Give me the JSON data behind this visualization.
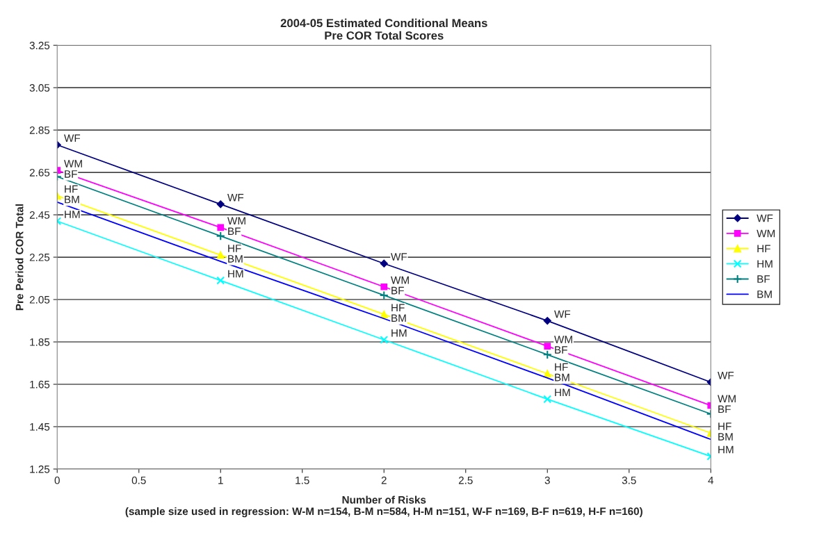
{
  "chart_data": {
    "type": "line",
    "title": "2004-05 Estimated Conditional Means\nPre COR Total Scores",
    "xlabel": "Number of Risks\n(sample size used in regression: W-M n=154, B-M n=584, H-M n=151, W-F n=169, B-F n=619, H-F n=160)",
    "ylabel": "Pre Period COR Total",
    "x": [
      0,
      1,
      2,
      3,
      4
    ],
    "series": [
      {
        "name": "WF",
        "color": "#000080",
        "marker": "diamond",
        "values": [
          2.78,
          2.5,
          2.22,
          1.95,
          1.66
        ],
        "value_labels": [
          "WF",
          "WF",
          "WF",
          "WF",
          "WF"
        ]
      },
      {
        "name": "WM",
        "color": "#ff00ff",
        "marker": "square",
        "values": [
          2.66,
          2.39,
          2.11,
          1.83,
          1.55
        ],
        "value_labels": [
          "WM",
          "WM",
          "WM",
          "WM",
          "WM"
        ]
      },
      {
        "name": "HF",
        "color": "#ffff00",
        "marker": "triangle",
        "values": [
          2.54,
          2.26,
          1.98,
          1.7,
          1.42
        ],
        "value_labels": [
          "HF",
          "HF",
          "HF",
          "HF",
          "HF"
        ]
      },
      {
        "name": "HM",
        "color": "#00ffff",
        "marker": "cross",
        "values": [
          2.42,
          2.14,
          1.86,
          1.58,
          1.31
        ],
        "value_labels": [
          "HM",
          "HM",
          "HM",
          "HM",
          "HM"
        ]
      },
      {
        "name": "BF",
        "color": "#008080",
        "marker": "plus",
        "values": [
          2.63,
          2.35,
          2.07,
          1.79,
          1.51
        ],
        "value_labels": [
          "BF",
          "BF",
          "BF",
          "BF",
          "BF"
        ]
      },
      {
        "name": "BM",
        "color": "#0000ff",
        "marker": "none",
        "values": [
          2.51,
          2.23,
          1.96,
          1.68,
          1.39
        ],
        "value_labels": [
          "BM",
          "BM",
          "BM",
          "BM",
          "BM"
        ]
      }
    ],
    "xlim": [
      0,
      4
    ],
    "xticks": [
      0,
      0.5,
      1,
      1.5,
      2,
      2.5,
      3,
      3.5,
      4
    ],
    "ylim": [
      1.25,
      3.25
    ],
    "yticks": [
      1.25,
      1.45,
      1.65,
      1.85,
      2.05,
      2.25,
      2.45,
      2.65,
      2.85,
      3.05,
      3.25
    ],
    "grid": "y",
    "legend": "right",
    "line_style": "solid"
  }
}
